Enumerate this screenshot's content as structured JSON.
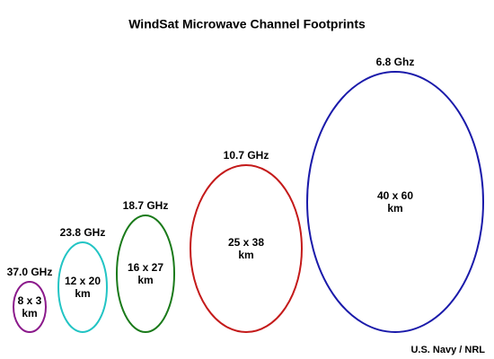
{
  "title": "WindSat Microwave Channel Footprints",
  "nodes": [
    {
      "frequency": "37.0 GHz",
      "size": "8 x 3",
      "unit": "km"
    },
    {
      "frequency": "23.8 GHz",
      "size": "12 x 20",
      "unit": "km"
    },
    {
      "frequency": "18.7 GHz",
      "size": "16 x 27",
      "unit": "km"
    },
    {
      "frequency": "10.7 GHz",
      "size": "25 x 38",
      "unit": "km"
    },
    {
      "frequency": "6.8 Ghz",
      "size": "40 x 60",
      "unit": "km"
    }
  ],
  "credit": "U.S. Navy / NRL"
}
